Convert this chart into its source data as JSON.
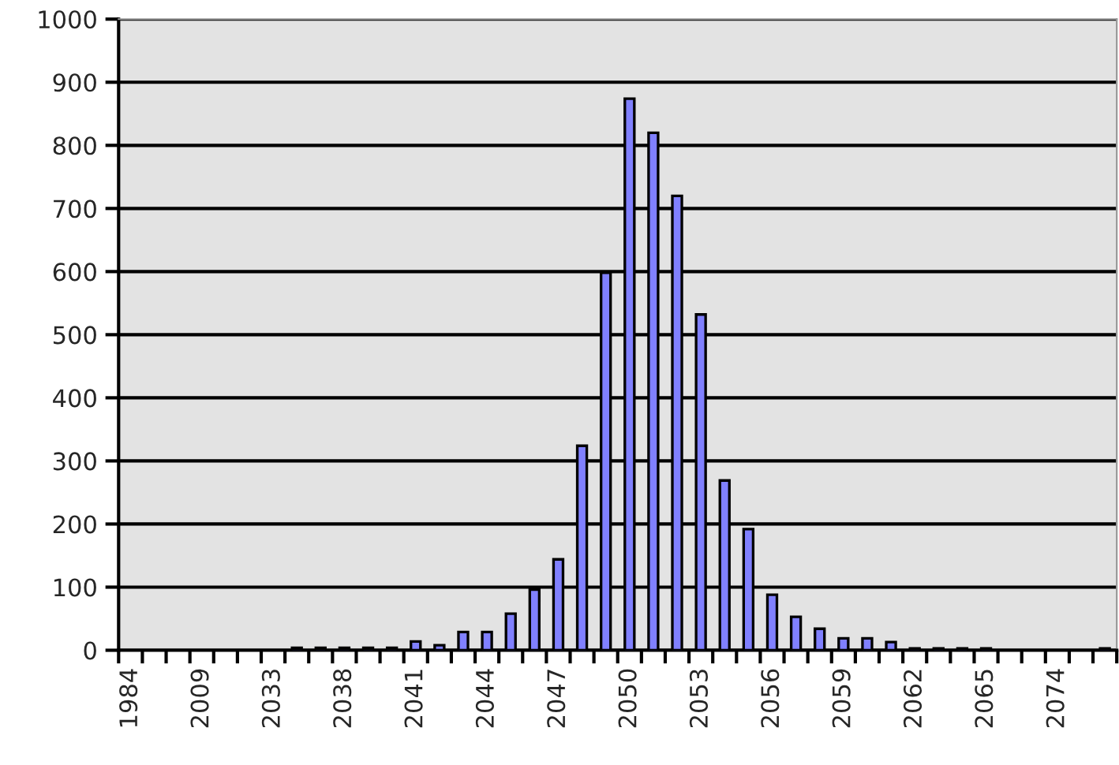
{
  "chart_data": {
    "type": "bar",
    "categories": [
      "1984",
      null,
      null,
      "2009",
      null,
      null,
      "2033",
      null,
      null,
      "2038",
      null,
      null,
      "2041",
      null,
      null,
      "2044",
      null,
      null,
      "2047",
      null,
      null,
      "2050",
      null,
      null,
      "2053",
      null,
      null,
      "2056",
      null,
      null,
      "2059",
      null,
      null,
      "2062",
      null,
      null,
      "2065",
      null,
      null,
      "2074",
      null,
      null
    ],
    "values": [
      0,
      0,
      0,
      0,
      0,
      0,
      0,
      4,
      4,
      4,
      4,
      4,
      14,
      8,
      29,
      29,
      58,
      96,
      144,
      324,
      598,
      874,
      820,
      720,
      532,
      269,
      192,
      88,
      53,
      34,
      19,
      19,
      13,
      3,
      3,
      3,
      3,
      0,
      0,
      0,
      0,
      3
    ],
    "color": "#8080ff",
    "ylim": [
      0,
      1000
    ],
    "yticks": [
      0,
      100,
      200,
      300,
      400,
      500,
      600,
      700,
      800,
      900,
      1000
    ],
    "grid": "y",
    "legend": false
  }
}
